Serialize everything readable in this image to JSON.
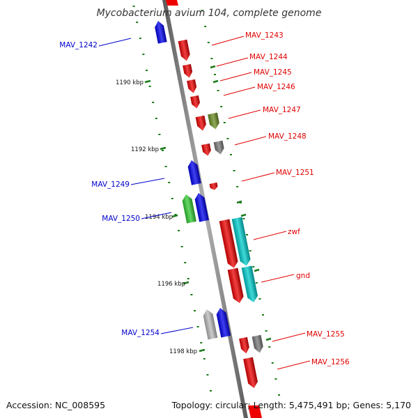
{
  "title": "Mycobacterium avium 104, complete genome",
  "footer": {
    "accession": "Accession: NC_008595",
    "summary": "Topology: circular; Length: 5,475,491 bp; Genes: 5,170"
  },
  "colors": {
    "forward_label": "#e00000",
    "reverse_label": "#0000cc",
    "tick": "#1a7a1a",
    "backbone": "#808080"
  },
  "ticks": [
    {
      "label": "1190 kbp"
    },
    {
      "label": "1192 kbp"
    },
    {
      "label": "1194 kbp"
    },
    {
      "label": "1196 kbp"
    },
    {
      "label": "1198 kbp"
    }
  ],
  "genes": [
    {
      "name": "MAV_1242",
      "strand": "reverse",
      "color": "#0000ee"
    },
    {
      "name": "MAV_1243",
      "strand": "forward",
      "color": "#ee0000"
    },
    {
      "name": "MAV_1244",
      "strand": "forward",
      "color": "#ee0000"
    },
    {
      "name": "MAV_1245",
      "strand": "forward",
      "color": "#ee0000"
    },
    {
      "name": "MAV_1246",
      "strand": "forward",
      "color": "#ee0000"
    },
    {
      "name": "MAV_1247",
      "strand": "forward",
      "color": "#6b8e23"
    },
    {
      "name": "MAV_1248",
      "strand": "forward",
      "color": "#777777"
    },
    {
      "name": "MAV_1249",
      "strand": "reverse",
      "color": "#0000ee"
    },
    {
      "name": "MAV_1250",
      "strand": "reverse",
      "color": "#33cc33"
    },
    {
      "name": "MAV_1251",
      "strand": "forward",
      "color": "#ee0000"
    },
    {
      "name": "zwf",
      "strand": "forward",
      "color": "#00cccc"
    },
    {
      "name": "gnd",
      "strand": "forward",
      "color": "#00cccc"
    },
    {
      "name": "MAV_1254",
      "strand": "reverse",
      "color": "#bbbbbb"
    },
    {
      "name": "MAV_1255",
      "strand": "forward",
      "color": "#777777"
    },
    {
      "name": "MAV_1256",
      "strand": "forward",
      "color": "#ee0000"
    }
  ]
}
